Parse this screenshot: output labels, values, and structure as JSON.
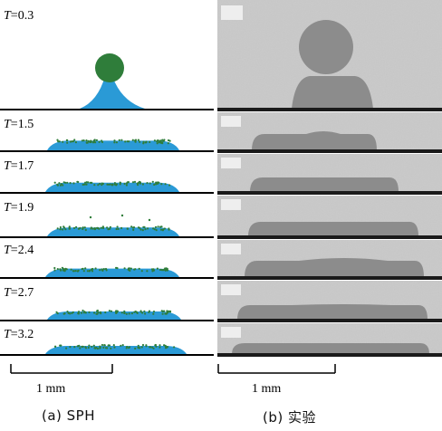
{
  "sph_panel": {
    "time_labels": [
      {
        "var": "T",
        "value": "=0.3"
      },
      {
        "var": "T",
        "value": "=1.5"
      },
      {
        "var": "T",
        "value": "=1.7"
      },
      {
        "var": "T",
        "value": "=1.9"
      },
      {
        "var": "T",
        "value": "=2.4"
      },
      {
        "var": "T",
        "value": "=2.7"
      },
      {
        "var": "T",
        "value": "=3.2"
      }
    ],
    "scale_label": "1 mm",
    "caption": "(a)  SPH"
  },
  "experiment_panel": {
    "scale_label": "1 mm",
    "caption": "(b)  实验"
  },
  "colors": {
    "particle_blue": "#2a9ad6",
    "particle_green": "#2f7d3a",
    "substrate": "#000000",
    "photo_background": "#c9c9c9",
    "photo_droplet": "#8c8c8c"
  }
}
